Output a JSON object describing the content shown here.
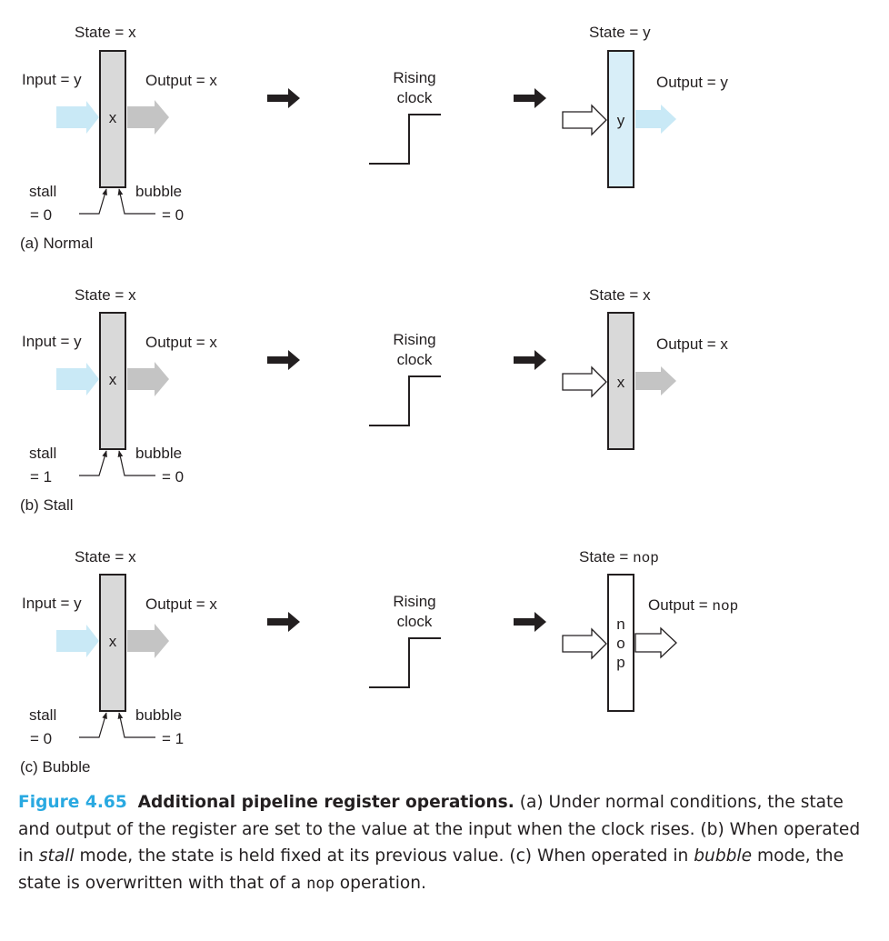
{
  "colors": {
    "ink": "#231f20",
    "register_gray": "#d9d9d9",
    "register_blue": "#d8eef8",
    "arrow_light_blue": "#c9e9f6",
    "arrow_gray": "#c4c4c4",
    "caption_accent": "#29a9e1"
  },
  "common": {
    "rising_clock_line1": "Rising",
    "rising_clock_line2": "clock",
    "stall_label": "stall",
    "bubble_label": "bubble"
  },
  "panels": [
    {
      "id": "normal",
      "label": "(a) Normal",
      "before": {
        "state": "State = x",
        "input": "Input = y",
        "output": "Output = x",
        "content": "x",
        "stall": "= 0",
        "bubble": "= 0"
      },
      "after": {
        "state": "State = y",
        "output": "Output = y",
        "content": [
          "y"
        ]
      }
    },
    {
      "id": "stall",
      "label": "(b) Stall",
      "before": {
        "state": "State = x",
        "input": "Input = y",
        "output": "Output = x",
        "content": "x",
        "stall": "= 1",
        "bubble": "= 0"
      },
      "after": {
        "state": "State = x",
        "output": "Output = x",
        "content": [
          "x"
        ]
      }
    },
    {
      "id": "bubble",
      "label": "(c) Bubble",
      "before": {
        "state": "State = x",
        "input": "Input = y",
        "output": "Output = x",
        "content": "x",
        "stall": "= 0",
        "bubble": "= 1"
      },
      "after": {
        "state_prefix": "State = ",
        "state_code": "nop",
        "output_prefix": "Output = ",
        "output_code": "nop",
        "content": [
          "n",
          "o",
          "p"
        ]
      }
    }
  ],
  "caption": {
    "figure_number": "Figure 4.65",
    "title": "Additional pipeline register operations.",
    "part1": " (a) Under normal conditions, the state and output of the register are set to the value at the input when the clock rises. (b) When operated in ",
    "stall_word": "stall",
    "part2": " mode, the state is held fixed at its previous value. (c) When operated in ",
    "bubble_word": "bubble",
    "part3": " mode, the state is overwritten with that of a ",
    "nop_word": "nop",
    "part4": " operation."
  }
}
